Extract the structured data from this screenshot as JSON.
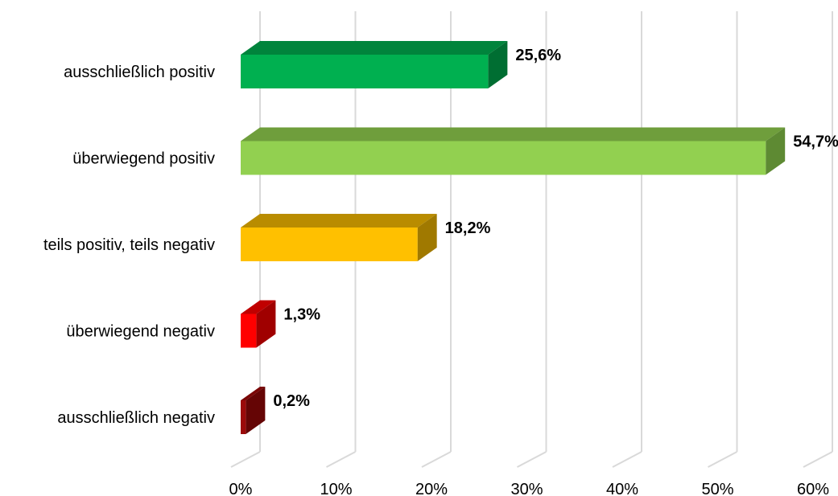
{
  "chart_data": {
    "type": "bar",
    "orientation": "horizontal",
    "three_d": true,
    "title": "",
    "xlabel": "",
    "ylabel": "",
    "xlim": [
      0,
      60
    ],
    "x_ticks": [
      0,
      10,
      20,
      30,
      40,
      50,
      60
    ],
    "x_tick_labels": [
      "0%",
      "10%",
      "20%",
      "30%",
      "40%",
      "50%",
      "60%"
    ],
    "grid": true,
    "legend": "none",
    "categories": [
      "ausschließlich positiv",
      "überwiegend positiv",
      "teils positiv, teils negativ",
      "überwiegend negativ",
      "ausschließlich negativ"
    ],
    "values": [
      25.6,
      54.7,
      18.2,
      1.3,
      0.2
    ],
    "data_labels": [
      "25,6%",
      "54,7%",
      "18,2%",
      "1,3%",
      "0,2%"
    ],
    "colors": [
      {
        "front": "#00b050",
        "top": "#00843c",
        "side": "#006e32"
      },
      {
        "front": "#92d050",
        "top": "#6f9e3c",
        "side": "#5e8a33"
      },
      {
        "front": "#ffc000",
        "top": "#b98c00",
        "side": "#a07900"
      },
      {
        "front": "#ff0000",
        "top": "#c00000",
        "side": "#a00000"
      },
      {
        "front": "#9b0a0a",
        "top": "#7a0606",
        "side": "#650505"
      }
    ]
  }
}
